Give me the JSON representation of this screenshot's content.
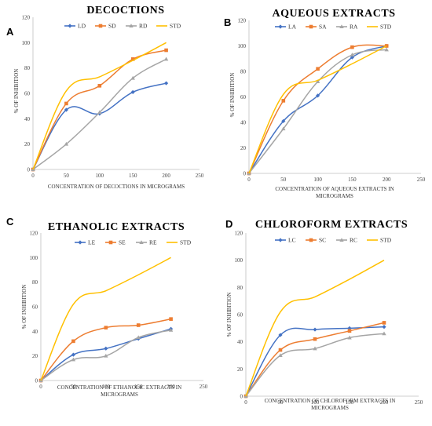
{
  "colors": {
    "L": "#4472C4",
    "S": "#ED7D31",
    "R": "#A5A5A5",
    "STD": "#FFC000"
  },
  "chart_data": [
    {
      "type": "line",
      "panel": "A",
      "title": "DECOCTIONS",
      "xlabel": "CONCENTRATION OF DECOCTIONS IN MICROGRAMS",
      "ylabel": "% OF INHIBITION",
      "xlim": [
        0,
        250
      ],
      "ylim": [
        0,
        120
      ],
      "xticks": [
        0,
        50,
        100,
        150,
        200,
        250
      ],
      "yticks": [
        0,
        20,
        40,
        60,
        80,
        100,
        120
      ],
      "x": [
        0,
        50,
        100,
        150,
        200
      ],
      "series": [
        {
          "name": "LD",
          "values": [
            0,
            47,
            44,
            61,
            68
          ],
          "color": "#4472C4",
          "marker": "diamond"
        },
        {
          "name": "SD",
          "values": [
            0,
            52,
            66,
            87,
            94
          ],
          "color": "#ED7D31",
          "marker": "square"
        },
        {
          "name": "RD",
          "values": [
            0,
            20,
            45,
            72,
            87
          ],
          "color": "#A5A5A5",
          "marker": "triangle"
        },
        {
          "name": "STD",
          "values": [
            0,
            62,
            73,
            86,
            100
          ],
          "color": "#FFC000",
          "marker": "none"
        }
      ]
    },
    {
      "type": "line",
      "panel": "B",
      "title": "AQUEOUS EXTRACTS",
      "xlabel": "CONCENTRATION OF AQUEOUS EXTRACTS IN MICROGRAMS",
      "ylabel": "% OF INHIBITION",
      "xlim": [
        0,
        250
      ],
      "ylim": [
        0,
        120
      ],
      "xticks": [
        0,
        50,
        100,
        150,
        200,
        250
      ],
      "yticks": [
        0,
        20,
        40,
        60,
        80,
        100,
        120
      ],
      "x": [
        0,
        50,
        100,
        150,
        200
      ],
      "series": [
        {
          "name": "LA",
          "values": [
            0,
            41,
            61,
            91,
            100
          ],
          "color": "#4472C4",
          "marker": "diamond"
        },
        {
          "name": "SA",
          "values": [
            0,
            57,
            82,
            99,
            100
          ],
          "color": "#ED7D31",
          "marker": "square"
        },
        {
          "name": "RA",
          "values": [
            0,
            35,
            72,
            93,
            97
          ],
          "color": "#A5A5A5",
          "marker": "triangle"
        },
        {
          "name": "STD",
          "values": [
            0,
            62,
            73,
            86,
            100
          ],
          "color": "#FFC000",
          "marker": "none"
        }
      ]
    },
    {
      "type": "line",
      "panel": "C",
      "title": "ETHANOLIC EXTRACTS",
      "xlabel": "CONCENTRATION OF ETHANOLIC EXTRACTS IN MICROGRAMS",
      "ylabel": "% OF INHIBITION",
      "xlim": [
        0,
        250
      ],
      "ylim": [
        0,
        120
      ],
      "xticks": [
        0,
        50,
        100,
        150,
        200,
        250
      ],
      "yticks": [
        0,
        20,
        40,
        60,
        80,
        100,
        120
      ],
      "x": [
        0,
        50,
        100,
        150,
        200
      ],
      "series": [
        {
          "name": "LE",
          "values": [
            0,
            21,
            26,
            34,
            42
          ],
          "color": "#4472C4",
          "marker": "diamond"
        },
        {
          "name": "SE",
          "values": [
            0,
            32,
            43,
            45,
            50
          ],
          "color": "#ED7D31",
          "marker": "square"
        },
        {
          "name": "RE",
          "values": [
            0,
            17,
            20,
            35,
            41
          ],
          "color": "#A5A5A5",
          "marker": "triangle"
        },
        {
          "name": "STD",
          "values": [
            0,
            62,
            73,
            86,
            100
          ],
          "color": "#FFC000",
          "marker": "none"
        }
      ]
    },
    {
      "type": "line",
      "panel": "D",
      "title": "CHLOROFORM EXTRACTS",
      "xlabel": "CONCENTRATION OF CHLOROFORM EXTRACTS IN MICROGRAMS",
      "ylabel": "% OF INHIBITION",
      "xlim": [
        0,
        250
      ],
      "ylim": [
        0,
        120
      ],
      "xticks": [
        0,
        50,
        100,
        150,
        200,
        250
      ],
      "yticks": [
        0,
        20,
        40,
        60,
        80,
        100,
        120
      ],
      "x": [
        0,
        50,
        100,
        150,
        200
      ],
      "series": [
        {
          "name": "LC",
          "values": [
            0,
            45,
            49,
            50,
            51
          ],
          "color": "#4472C4",
          "marker": "diamond"
        },
        {
          "name": "SC",
          "values": [
            0,
            34,
            42,
            48,
            54
          ],
          "color": "#ED7D31",
          "marker": "square"
        },
        {
          "name": "RC",
          "values": [
            0,
            30,
            35,
            43,
            46
          ],
          "color": "#A5A5A5",
          "marker": "triangle"
        },
        {
          "name": "STD",
          "values": [
            0,
            62,
            73,
            86,
            100
          ],
          "color": "#FFC000",
          "marker": "none"
        }
      ]
    }
  ]
}
